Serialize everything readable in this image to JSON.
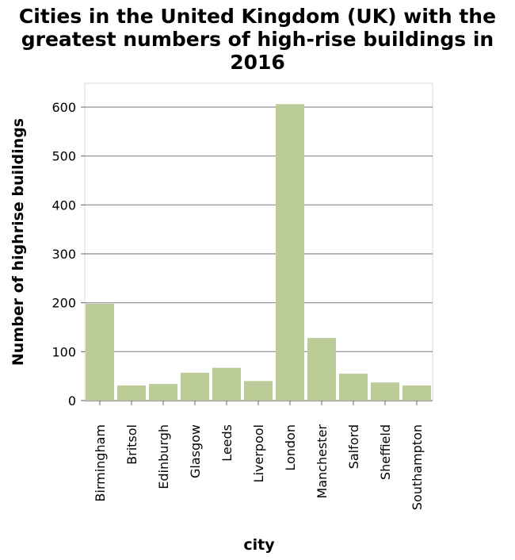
{
  "chart_data": {
    "type": "bar",
    "title_lines": [
      "Cities in the United Kingdom (UK) with the",
      "greatest numbers of high-rise buildings in",
      "2016"
    ],
    "xlabel": "city",
    "ylabel": "Number of highrise buildings",
    "categories": [
      "Birmingham",
      "Britsol",
      "Edinburgh",
      "Glasgow",
      "Leeds",
      "Liverpool",
      "London",
      "Manchester",
      "Salford",
      "Sheffield",
      "Southampton"
    ],
    "values": [
      198,
      31,
      34,
      57,
      67,
      40,
      606,
      128,
      55,
      37,
      31
    ],
    "ylim": [
      0,
      650
    ],
    "yticks": [
      0,
      100,
      200,
      300,
      400,
      500,
      600
    ],
    "grid": true,
    "bar_color": "#bccc99"
  }
}
